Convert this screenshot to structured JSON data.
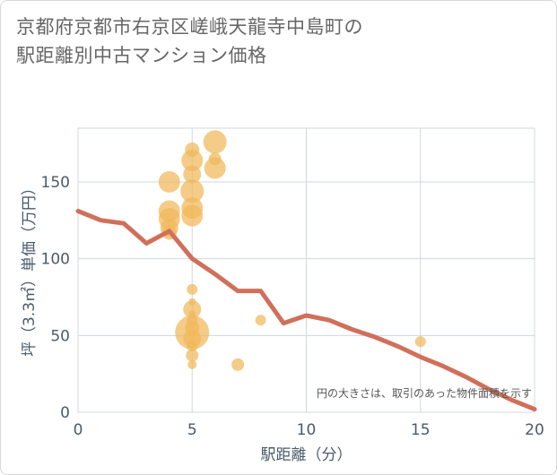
{
  "title_line1": "京都府京都市右京区嵯峨天龍寺中島町の",
  "title_line2": "駅距離別中古マンション価格",
  "chart_data": {
    "type": "scatter",
    "xlabel": "駅距離（分）",
    "ylabel": "坪（3.3㎡）単価（万円）",
    "xlim": [
      0,
      20
    ],
    "ylim": [
      0,
      185
    ],
    "xticks": [
      0,
      5,
      10,
      15,
      20
    ],
    "yticks": [
      0,
      50,
      100,
      150
    ],
    "grid": true,
    "annotation": "円の大きさは、取引のあった物件面積を示す",
    "colors": {
      "points": "#f0b85a",
      "line": "#d0705a",
      "grid": "#cfd8df",
      "axis_text": "#4a5b6a"
    },
    "points": [
      {
        "x": 4,
        "y": 150,
        "size": 12
      },
      {
        "x": 4,
        "y": 131,
        "size": 12
      },
      {
        "x": 4,
        "y": 126,
        "size": 12
      },
      {
        "x": 4,
        "y": 120,
        "size": 10
      },
      {
        "x": 4,
        "y": 117,
        "size": 8
      },
      {
        "x": 5,
        "y": 171,
        "size": 8
      },
      {
        "x": 5,
        "y": 164,
        "size": 12
      },
      {
        "x": 5,
        "y": 155,
        "size": 10
      },
      {
        "x": 5,
        "y": 144,
        "size": 13
      },
      {
        "x": 5,
        "y": 133,
        "size": 12
      },
      {
        "x": 5,
        "y": 128,
        "size": 12
      },
      {
        "x": 5,
        "y": 80,
        "size": 6
      },
      {
        "x": 5,
        "y": 72,
        "size": 4
      },
      {
        "x": 5,
        "y": 67,
        "size": 10
      },
      {
        "x": 5,
        "y": 64,
        "size": 4
      },
      {
        "x": 5,
        "y": 60,
        "size": 6
      },
      {
        "x": 5,
        "y": 55,
        "size": 8
      },
      {
        "x": 5,
        "y": 52,
        "size": 19
      },
      {
        "x": 5,
        "y": 48,
        "size": 10
      },
      {
        "x": 5,
        "y": 43,
        "size": 6
      },
      {
        "x": 5,
        "y": 37,
        "size": 7
      },
      {
        "x": 5,
        "y": 31,
        "size": 5
      },
      {
        "x": 6,
        "y": 176,
        "size": 13
      },
      {
        "x": 6,
        "y": 165,
        "size": 7
      },
      {
        "x": 6,
        "y": 159,
        "size": 12
      },
      {
        "x": 7,
        "y": 31,
        "size": 7
      },
      {
        "x": 8,
        "y": 60,
        "size": 6
      },
      {
        "x": 15,
        "y": 46,
        "size": 6
      }
    ],
    "line": {
      "x": [
        0,
        1,
        2,
        3,
        4,
        5,
        6,
        7,
        8,
        9,
        10,
        11,
        12,
        13,
        14,
        15,
        16,
        17,
        18,
        19,
        20
      ],
      "y": [
        131,
        125,
        123,
        110,
        118,
        100,
        90,
        79,
        79,
        58,
        63,
        60,
        54,
        49,
        43,
        36,
        30,
        23,
        15,
        8,
        2
      ]
    }
  }
}
